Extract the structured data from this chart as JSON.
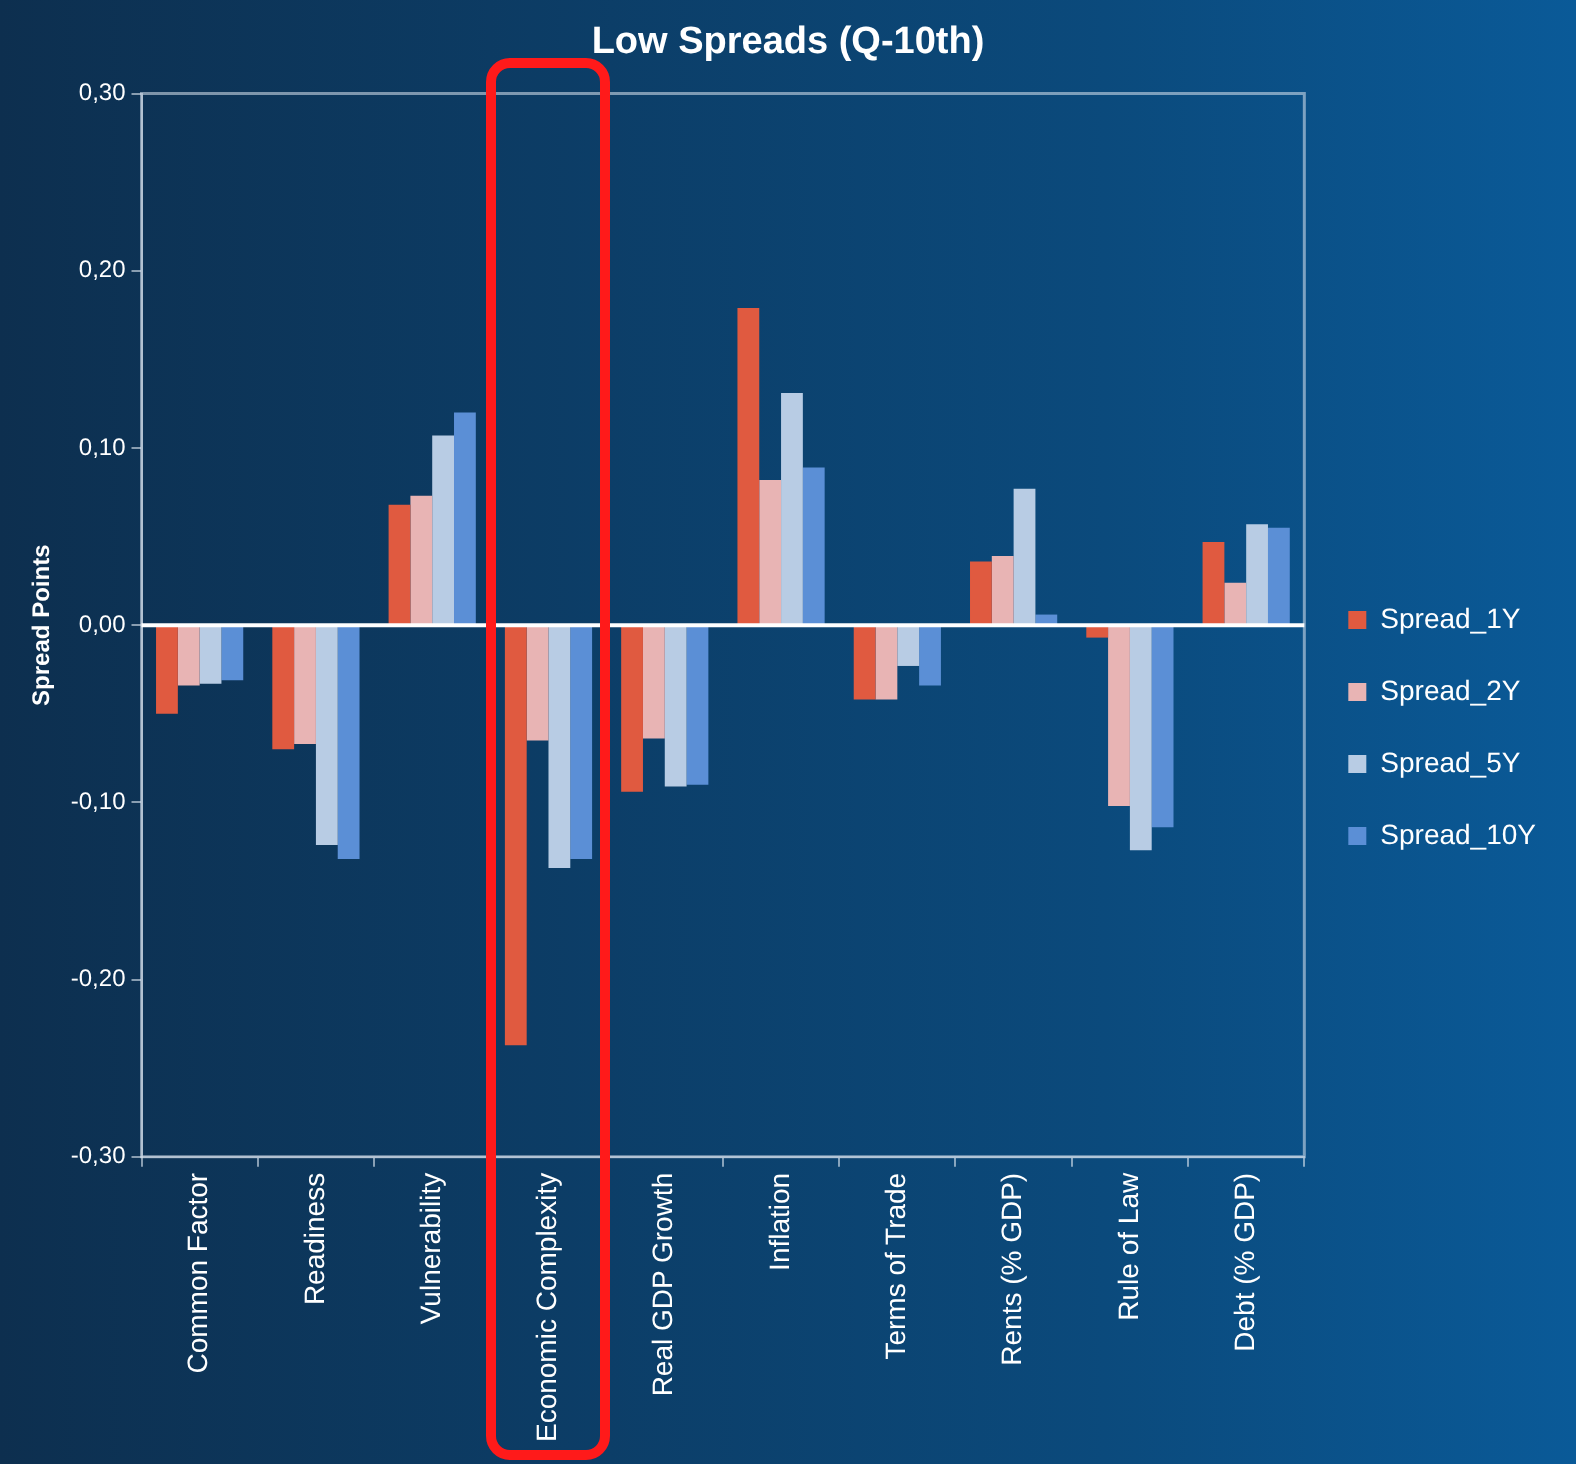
{
  "chart_data": {
    "type": "bar",
    "title": "Low Spreads (Q-10th)",
    "ylabel": "Spread Points",
    "categories": [
      "Common Factor",
      "Readiness",
      "Vulnerability",
      "Economic Complexity",
      "Real GDP Growth",
      "Inflation",
      "Terms of Trade",
      "Rents (% GDP)",
      "Rule of Law",
      "Debt (% GDP)"
    ],
    "series": [
      {
        "name": "Spread_1Y",
        "color": "#e05a40",
        "values": [
          -0.05,
          -0.07,
          0.068,
          -0.237,
          -0.094,
          0.179,
          -0.042,
          0.036,
          -0.007,
          0.047
        ]
      },
      {
        "name": "Spread_2Y",
        "color": "#e8b4b4",
        "values": [
          -0.034,
          -0.067,
          0.073,
          -0.065,
          -0.064,
          0.082,
          -0.042,
          0.039,
          -0.102,
          0.024
        ]
      },
      {
        "name": "Spread_5Y",
        "color": "#b8cce4",
        "values": [
          -0.033,
          -0.124,
          0.107,
          -0.137,
          -0.091,
          0.131,
          -0.023,
          0.077,
          -0.127,
          0.057
        ]
      },
      {
        "name": "Spread_10Y",
        "color": "#5b8fd6",
        "values": [
          -0.031,
          -0.132,
          0.12,
          -0.132,
          -0.09,
          0.089,
          -0.034,
          0.006,
          -0.114,
          0.055
        ]
      }
    ],
    "ylim": [
      -0.3,
      0.3
    ],
    "yticks": [
      {
        "value": -0.3,
        "label": "-0,30"
      },
      {
        "value": -0.2,
        "label": "-0,20"
      },
      {
        "value": -0.1,
        "label": "-0,10"
      },
      {
        "value": 0,
        "label": "0,00"
      },
      {
        "value": 0.1,
        "label": "0,10"
      },
      {
        "value": 0.2,
        "label": "0,20"
      },
      {
        "value": 0.3,
        "label": "0,30"
      }
    ],
    "legend": "right"
  }
}
